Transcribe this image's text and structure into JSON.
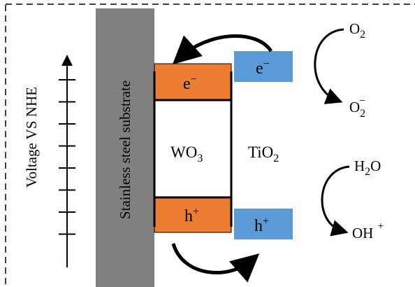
{
  "axis": {
    "label": "Voltage VS NHE",
    "tick_count": 8
  },
  "substrate": {
    "label": "Stainless steel substrate",
    "color": "#808080"
  },
  "wo3": {
    "label_main": "WO",
    "label_sub": "3",
    "band_color": "#ED7D31",
    "cb_label_main": "e",
    "cb_label_sup": "−",
    "vb_label_main": "h",
    "vb_label_sup": "+"
  },
  "tio2": {
    "label_main": "TiO",
    "label_sub": "2",
    "band_color": "#5B9BD5",
    "cb_label_main": "e",
    "cb_label_sup": "−",
    "vb_label_main": "h",
    "vb_label_sup": "+"
  },
  "reactions": {
    "oxygen_reactant_main": "O",
    "oxygen_reactant_sub": "2",
    "superoxide_main": "O",
    "superoxide_sub": "2",
    "superoxide_sup": "−",
    "water_main": "H",
    "water_sub": "2",
    "water_tail": "O",
    "hydroxyl_main": "OH",
    "hydroxyl_sup": "+"
  },
  "border": {
    "style": "dashed",
    "color": "#000000"
  }
}
